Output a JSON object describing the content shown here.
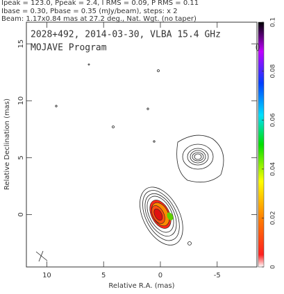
{
  "chart_data": {
    "type": "contour",
    "header": [
      "Ipeak = 123.0, Ppeak = 2.4, I RMS = 0.09, P RMS = 0.11",
      "Ibase = 0.30, Pbase = 0.35 (mJy/beam), steps: x 2",
      "Beam: 1.17x0.84 mas at 27.2 deg., Nat. Wgt. (no taper)"
    ],
    "annotations": [
      "2028+492, 2014-03-30, VLBA 15.4 GHz",
      "MOJAVE Program"
    ],
    "xlabel": "Relative R.A. (mas)",
    "ylabel": "Relative Declination (mas)",
    "xlim": [
      11.8,
      -8.5
    ],
    "xticks": [
      10,
      5,
      0,
      -5
    ],
    "ylim": [
      -4.6,
      16.9
    ],
    "yticks": [
      0,
      5,
      10,
      15
    ],
    "colorbar_lim": [
      0,
      0.1
    ],
    "colorbar_ticks": [
      0,
      0.02,
      0.04,
      0.06,
      0.08,
      0.1
    ]
  }
}
